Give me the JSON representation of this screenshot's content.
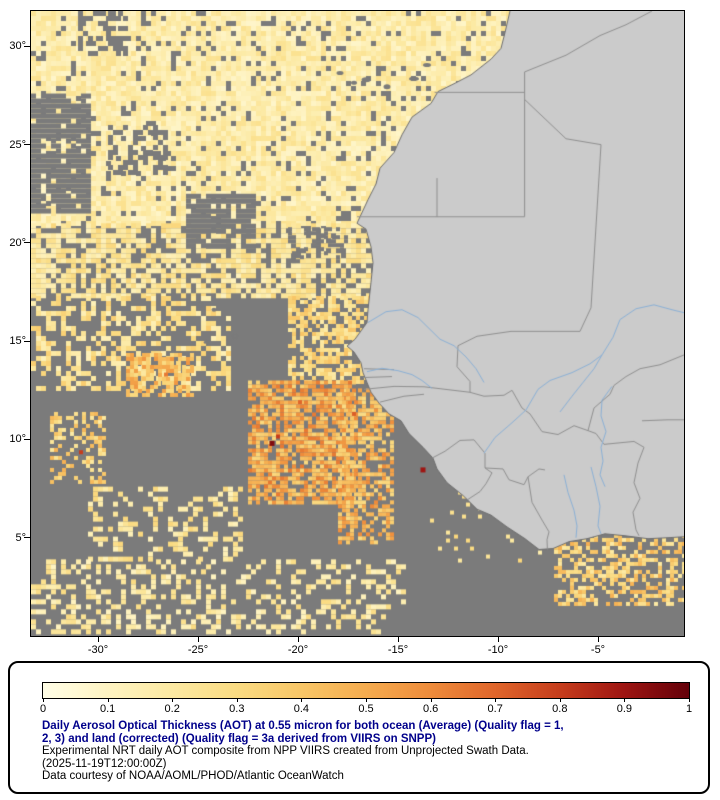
{
  "map": {
    "frame_color": "#000000",
    "ocean_nodata_color": "#7b7b7b",
    "land_color": "#cbcbcb",
    "coast_color": "#6e6e6e",
    "border_color": "#8f8f8f",
    "river_color": "#8ab0d6",
    "extent": {
      "lon_min": -33.35,
      "lon_max": -0.7,
      "lat_min": 0.0,
      "lat_max": 31.8
    },
    "lat_ticks": [
      {
        "lat": 30,
        "label": "30°"
      },
      {
        "lat": 25,
        "label": "25°"
      },
      {
        "lat": 20,
        "label": "20°"
      },
      {
        "lat": 15,
        "label": "15°"
      },
      {
        "lat": 10,
        "label": "10°"
      },
      {
        "lat": 5,
        "label": "5°"
      }
    ],
    "lon_ticks": [
      {
        "lon": -30,
        "label": "-30°"
      },
      {
        "lon": -25,
        "label": "-25°"
      },
      {
        "lon": -20,
        "label": "-20°"
      },
      {
        "lon": -15,
        "label": "-15°"
      },
      {
        "lon": -10,
        "label": "-10°"
      },
      {
        "lon": -5,
        "label": "-5°"
      }
    ]
  },
  "chart_data": {
    "type": "heatmap",
    "title": "Daily Aerosol Optical Thickness (AOT) at 0.55 micron",
    "value_range": [
      0,
      1
    ],
    "colorbar": {
      "min": 0,
      "max": 1,
      "tick_labels": [
        "0",
        "0.1",
        "0.2",
        "0.3",
        "0.4",
        "0.5",
        "0.6",
        "0.7",
        "0.8",
        "0.9",
        "1"
      ],
      "stops": [
        {
          "v": 0.0,
          "c": "#fffde6"
        },
        {
          "v": 0.05,
          "c": "#fff9d5"
        },
        {
          "v": 0.1,
          "c": "#fef3c2"
        },
        {
          "v": 0.2,
          "c": "#fce9a2"
        },
        {
          "v": 0.3,
          "c": "#fadb82"
        },
        {
          "v": 0.4,
          "c": "#f8c667"
        },
        {
          "v": 0.5,
          "c": "#f5ac4f"
        },
        {
          "v": 0.6,
          "c": "#ee8c3b"
        },
        {
          "v": 0.7,
          "c": "#e0662b"
        },
        {
          "v": 0.8,
          "c": "#c63d1c"
        },
        {
          "v": 0.9,
          "c": "#9e1512"
        },
        {
          "v": 1.0,
          "c": "#640009"
        }
      ]
    },
    "regions": [
      {
        "name": "north_atlantic_dust_field",
        "lon": [
          -33.35,
          -9.4
        ],
        "lat": [
          21.0,
          31.8
        ],
        "aot": 0.17,
        "spread": 0.09,
        "cov": 0.88,
        "cell": 5
      },
      {
        "name": "band_17_21N",
        "lon": [
          -33.35,
          -16.2
        ],
        "lat": [
          17.3,
          21.0
        ],
        "aot": 0.22,
        "spread": 0.1,
        "cov": 0.7,
        "cell": 5
      },
      {
        "name": "west_mid_scatter",
        "lon": [
          -33.35,
          -23.5
        ],
        "lat": [
          12.5,
          17.3
        ],
        "aot": 0.25,
        "spread": 0.12,
        "cov": 0.42,
        "cell": 5
      },
      {
        "name": "senegal_offshore",
        "lon": [
          -20.5,
          -16.2
        ],
        "lat": [
          13.0,
          17.3
        ],
        "aot": 0.3,
        "spread": 0.12,
        "cov": 0.6,
        "cell": 4
      },
      {
        "name": "orange_patch_west",
        "lon": [
          -28.6,
          -25.4
        ],
        "lat": [
          12.2,
          14.4
        ],
        "aot": 0.42,
        "spread": 0.15,
        "cov": 0.7,
        "cell": 4
      },
      {
        "name": "central_smoke_plume",
        "lon": [
          -22.5,
          -17.2
        ],
        "lat": [
          6.8,
          13.0
        ],
        "aot": 0.48,
        "spread": 0.17,
        "cov": 0.75,
        "cell": 4
      },
      {
        "name": "guinea_coastal_plume",
        "lon": [
          -18.0,
          -15.2
        ],
        "lat": [
          4.8,
          12.6
        ],
        "aot": 0.45,
        "spread": 0.16,
        "cov": 0.6,
        "cell": 4
      },
      {
        "name": "far_west_cluster",
        "lon": [
          -32.4,
          -29.7
        ],
        "lat": [
          7.8,
          11.4
        ],
        "aot": 0.33,
        "spread": 0.15,
        "cov": 0.4,
        "cell": 4
      },
      {
        "name": "south_mid_scatter",
        "lon": [
          -30.5,
          -22.8
        ],
        "lat": [
          3.8,
          7.6
        ],
        "aot": 0.22,
        "spread": 0.1,
        "cov": 0.3,
        "cell": 5
      },
      {
        "name": "equatorial_band",
        "lon": [
          -33.35,
          -14.8
        ],
        "lat": [
          0.2,
          3.9
        ],
        "aot": 0.2,
        "spread": 0.1,
        "cov": 0.32,
        "cell": 5
      },
      {
        "name": "gulf_of_guinea_coastal",
        "lon": [
          -7.2,
          -0.7
        ],
        "lat": [
          1.7,
          5.6
        ],
        "aot": 0.34,
        "spread": 0.15,
        "cov": 0.5,
        "cell": 4
      },
      {
        "name": "liberia_offshore_sparse",
        "lon": [
          -13.4,
          -7.5
        ],
        "lat": [
          3.8,
          7.4
        ],
        "aot": 0.25,
        "spread": 0.1,
        "cov": 0.07,
        "cell": 4
      }
    ],
    "holes": [
      {
        "lon": [
          -33.35,
          -30.4
        ],
        "lat": [
          21.5,
          27.6
        ],
        "cov": 0.85,
        "cell": 5
      },
      {
        "lon": [
          -25.6,
          -22.3
        ],
        "lat": [
          19.8,
          22.5
        ],
        "cov": 0.8,
        "cell": 5
      },
      {
        "lon": [
          -31.0,
          -28.6
        ],
        "lat": [
          29.6,
          31.8
        ],
        "cov": 0.45,
        "cell": 5
      },
      {
        "lon": [
          -29.5,
          -26.5
        ],
        "lat": [
          23.5,
          26.0
        ],
        "cov": 0.45,
        "cell": 5
      },
      {
        "lon": [
          -20.5,
          -17.5
        ],
        "lat": [
          19.0,
          20.8
        ],
        "cov": 0.3,
        "cell": 4
      }
    ],
    "hot_spots": [
      {
        "lon": -21.3,
        "lat": 9.8,
        "aot": 0.95,
        "size": 5
      },
      {
        "lon": -21.0,
        "lat": 10.15,
        "aot": 0.8,
        "size": 4
      },
      {
        "lon": -13.75,
        "lat": 8.45,
        "aot": 0.9,
        "size": 5
      },
      {
        "lon": -30.85,
        "lat": 9.35,
        "aot": 0.8,
        "size": 4
      },
      {
        "lon": -17.2,
        "lat": 11.3,
        "aot": 0.72,
        "size": 4
      },
      {
        "lon": -19.9,
        "lat": 11.9,
        "aot": 0.7,
        "size": 4
      },
      {
        "lon": -26.6,
        "lat": 13.3,
        "aot": 0.65,
        "size": 4
      }
    ]
  },
  "geo": {
    "coast": [
      [
        -9.4,
        31.8
      ],
      [
        -9.65,
        30.7
      ],
      [
        -9.85,
        29.9
      ],
      [
        -10.35,
        29.35
      ],
      [
        -11.35,
        28.55
      ],
      [
        -12.2,
        28.1
      ],
      [
        -13.0,
        27.7
      ],
      [
        -13.35,
        27.1
      ],
      [
        -14.3,
        26.4
      ],
      [
        -14.8,
        25.5
      ],
      [
        -15.2,
        24.6
      ],
      [
        -15.9,
        23.8
      ],
      [
        -16.1,
        23.0
      ],
      [
        -16.5,
        22.2
      ],
      [
        -17.05,
        21.0
      ],
      [
        -16.6,
        20.7
      ],
      [
        -16.35,
        19.8
      ],
      [
        -16.25,
        19.0
      ],
      [
        -16.35,
        18.0
      ],
      [
        -16.5,
        16.6
      ],
      [
        -16.55,
        15.95
      ],
      [
        -17.15,
        15.1
      ],
      [
        -17.55,
        14.75
      ],
      [
        -17.2,
        14.45
      ],
      [
        -16.85,
        13.9
      ],
      [
        -16.75,
        13.4
      ],
      [
        -16.55,
        12.9
      ],
      [
        -16.35,
        12.4
      ],
      [
        -15.95,
        11.85
      ],
      [
        -15.45,
        11.3
      ],
      [
        -14.85,
        10.95
      ],
      [
        -14.45,
        10.3
      ],
      [
        -13.75,
        9.6
      ],
      [
        -13.25,
        9.05
      ],
      [
        -13.05,
        8.5
      ],
      [
        -12.55,
        7.8
      ],
      [
        -11.75,
        7.15
      ],
      [
        -11.05,
        6.45
      ],
      [
        -10.35,
        6.15
      ],
      [
        -9.55,
        5.55
      ],
      [
        -8.65,
        4.95
      ],
      [
        -7.95,
        4.4
      ],
      [
        -7.25,
        4.45
      ],
      [
        -6.45,
        4.8
      ],
      [
        -5.55,
        4.95
      ],
      [
        -4.65,
        5.2
      ],
      [
        -3.65,
        5.1
      ],
      [
        -2.5,
        4.95
      ],
      [
        -1.5,
        5.0
      ],
      [
        -0.7,
        5.05
      ]
    ],
    "borders": [
      [
        [
          -8.67,
          28.7
        ],
        [
          -8.67,
          21.33
        ]
      ],
      [
        [
          -8.67,
          28.7
        ],
        [
          -6.6,
          29.55
        ],
        [
          -4.9,
          30.55
        ],
        [
          -3.6,
          31.1
        ],
        [
          -2.3,
          31.8
        ]
      ],
      [
        [
          -13.17,
          27.66
        ],
        [
          -8.67,
          27.66
        ]
      ],
      [
        [
          -17.05,
          21.33
        ],
        [
          -8.67,
          21.33
        ]
      ],
      [
        [
          -13.05,
          21.33
        ],
        [
          -13.05,
          23.3
        ]
      ],
      [
        [
          -5.9,
          15.5
        ],
        [
          -5.35,
          16.7
        ],
        [
          -4.85,
          25.0
        ],
        [
          -6.6,
          25.3
        ],
        [
          -8.67,
          27.3
        ]
      ],
      [
        [
          -12.0,
          14.77
        ],
        [
          -11.05,
          15.25
        ],
        [
          -9.35,
          15.5
        ],
        [
          -7.0,
          15.5
        ],
        [
          -5.9,
          15.5
        ]
      ],
      [
        [
          -12.0,
          14.77
        ],
        [
          -12.05,
          13.7
        ],
        [
          -11.4,
          12.95
        ],
        [
          -11.4,
          12.4
        ]
      ],
      [
        [
          -16.7,
          12.55
        ],
        [
          -15.2,
          12.7
        ],
        [
          -13.7,
          12.68
        ],
        [
          -11.4,
          12.4
        ]
      ],
      [
        [
          -16.75,
          13.15
        ],
        [
          -15.3,
          13.2
        ]
      ],
      [
        [
          -16.7,
          13.6
        ],
        [
          -15.2,
          13.55
        ]
      ],
      [
        [
          -15.9,
          11.9
        ],
        [
          -14.7,
          12.2
        ],
        [
          -13.7,
          12.3
        ]
      ],
      [
        [
          -11.4,
          12.4
        ],
        [
          -10.7,
          12.2
        ],
        [
          -9.7,
          12.25
        ],
        [
          -9.3,
          12.5
        ],
        [
          -8.8,
          11.6
        ],
        [
          -8.4,
          11.3
        ]
      ],
      [
        [
          -13.3,
          9.05
        ],
        [
          -12.65,
          9.4
        ],
        [
          -11.9,
          9.95
        ],
        [
          -11.2,
          9.98
        ],
        [
          -10.65,
          9.3
        ],
        [
          -10.65,
          8.55
        ]
      ],
      [
        [
          -11.5,
          6.95
        ],
        [
          -10.9,
          7.35
        ],
        [
          -10.6,
          7.75
        ],
        [
          -10.3,
          8.3
        ],
        [
          -10.65,
          8.55
        ]
      ],
      [
        [
          -10.65,
          8.55
        ],
        [
          -9.75,
          8.5
        ],
        [
          -9.45,
          7.95
        ],
        [
          -8.7,
          7.7
        ],
        [
          -8.5,
          8.1
        ],
        [
          -7.95,
          8.5
        ],
        [
          -7.65,
          8.45
        ]
      ],
      [
        [
          -8.5,
          8.1
        ],
        [
          -8.3,
          6.8
        ],
        [
          -7.8,
          5.9
        ],
        [
          -7.45,
          5.3
        ],
        [
          -7.55,
          4.9
        ],
        [
          -7.53,
          4.4
        ]
      ],
      [
        [
          -8.4,
          11.3
        ],
        [
          -7.8,
          10.4
        ],
        [
          -7.0,
          10.25
        ],
        [
          -6.2,
          10.7
        ],
        [
          -5.5,
          10.45
        ],
        [
          -5.1,
          10.3
        ],
        [
          -4.7,
          9.75
        ],
        [
          -4.2,
          9.8
        ],
        [
          -3.2,
          9.9
        ],
        [
          -2.7,
          9.6
        ]
      ],
      [
        [
          -5.5,
          10.45
        ],
        [
          -5.2,
          11.6
        ],
        [
          -4.4,
          12.3
        ],
        [
          -4.2,
          12.75
        ],
        [
          -3.6,
          13.2
        ],
        [
          -2.9,
          13.6
        ],
        [
          -1.9,
          13.8
        ],
        [
          -0.7,
          14.3
        ]
      ],
      [
        [
          -2.7,
          9.6
        ],
        [
          -3.0,
          8.8
        ],
        [
          -3.2,
          7.8
        ],
        [
          -2.9,
          7.0
        ],
        [
          -3.25,
          6.3
        ],
        [
          -3.1,
          5.4
        ],
        [
          -2.95,
          5.1
        ]
      ],
      [
        [
          -2.8,
          10.95
        ],
        [
          -1.5,
          11.0
        ],
        [
          -0.7,
          11.0
        ]
      ]
    ],
    "rivers": [
      [
        [
          -16.5,
          15.95
        ],
        [
          -15.6,
          16.5
        ],
        [
          -14.8,
          16.6
        ],
        [
          -14.0,
          16.2
        ],
        [
          -13.4,
          15.6
        ],
        [
          -12.9,
          15.1
        ],
        [
          -12.2,
          14.77
        ],
        [
          -11.6,
          14.2
        ],
        [
          -11.1,
          13.6
        ],
        [
          -10.7,
          12.9
        ]
      ],
      [
        [
          -10.7,
          9.3
        ],
        [
          -10.15,
          10.1
        ],
        [
          -9.3,
          10.85
        ],
        [
          -8.6,
          11.5
        ],
        [
          -8.0,
          12.55
        ],
        [
          -7.4,
          13.0
        ],
        [
          -6.3,
          13.4
        ],
        [
          -5.4,
          13.85
        ],
        [
          -4.8,
          14.3
        ],
        [
          -4.25,
          15.2
        ],
        [
          -3.9,
          16.1
        ],
        [
          -3.1,
          16.65
        ],
        [
          -2.2,
          16.85
        ],
        [
          -1.3,
          16.6
        ],
        [
          -0.7,
          16.45
        ]
      ],
      [
        [
          -6.9,
          11.4
        ],
        [
          -6.3,
          12.2
        ],
        [
          -5.75,
          12.9
        ],
        [
          -5.2,
          13.6
        ],
        [
          -4.8,
          14.3
        ]
      ],
      [
        [
          -16.55,
          13.45
        ],
        [
          -15.8,
          13.62
        ],
        [
          -15.0,
          13.5
        ],
        [
          -14.3,
          13.3
        ],
        [
          -13.8,
          13.0
        ],
        [
          -13.3,
          12.6
        ]
      ],
      [
        [
          -4.3,
          12.7
        ],
        [
          -4.8,
          12.0
        ],
        [
          -4.85,
          11.2
        ],
        [
          -4.6,
          10.4
        ],
        [
          -4.85,
          9.6
        ],
        [
          -4.75,
          8.9
        ],
        [
          -4.9,
          8.2
        ],
        [
          -4.65,
          7.6
        ]
      ],
      [
        [
          -6.7,
          8.2
        ],
        [
          -6.5,
          7.3
        ],
        [
          -6.2,
          6.4
        ],
        [
          -6.05,
          5.6
        ],
        [
          -6.1,
          5.0
        ]
      ],
      [
        [
          -5.35,
          8.6
        ],
        [
          -5.1,
          7.6
        ],
        [
          -4.9,
          6.6
        ],
        [
          -5.0,
          5.6
        ],
        [
          -4.85,
          5.2
        ]
      ]
    ],
    "islands_nodata": [
      {
        "lon": -17.9,
        "lat": 28.65,
        "w": 7,
        "h": 4
      },
      {
        "lon": -17.2,
        "lat": 28.15,
        "w": 6,
        "h": 4
      },
      {
        "lon": -16.6,
        "lat": 28.3,
        "w": 9,
        "h": 5
      },
      {
        "lon": -15.55,
        "lat": 27.95,
        "w": 7,
        "h": 5
      },
      {
        "lon": -14.2,
        "lat": 28.35,
        "w": 10,
        "h": 4
      },
      {
        "lon": -13.55,
        "lat": 29.05,
        "w": 8,
        "h": 4
      },
      {
        "lon": -24.9,
        "lat": 16.85,
        "w": 6,
        "h": 4
      },
      {
        "lon": -24.2,
        "lat": 16.6,
        "w": 5,
        "h": 4
      },
      {
        "lon": -23.15,
        "lat": 15.25,
        "w": 6,
        "h": 4
      },
      {
        "lon": -24.6,
        "lat": 14.95,
        "w": 5,
        "h": 3
      }
    ]
  },
  "legend": {
    "bold_color": "#00008b",
    "bold_lines": [
      "Daily Aerosol Optical Thickness (AOT) at 0.55 micron for both ocean (Average) (Quality flag = 1,",
      "2, 3) and land (corrected) (Quality flag = 3a derived from VIIRS on SNPP)"
    ],
    "info_lines": [
      "Experimental NRT daily AOT composite from NPP VIIRS created from Unprojected Swath Data.",
      "(2025-11-19T12:00:00Z)",
      "Data courtesy of NOAA/AOML/PHOD/Atlantic OceanWatch"
    ]
  }
}
